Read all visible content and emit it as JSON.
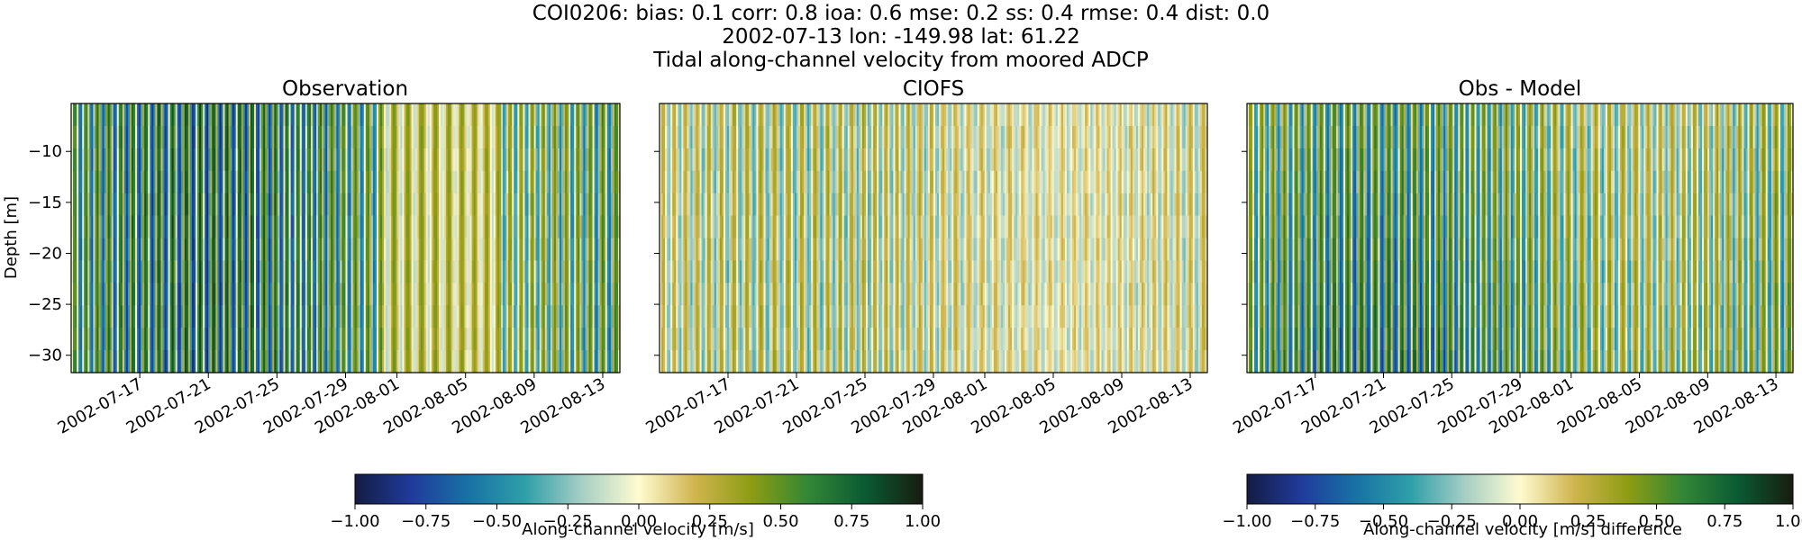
{
  "figure": {
    "title_lines": [
      "COI0206: bias: 0.1  corr: 0.8  ioa: 0.6  mse: 0.2  ss: 0.4  rmse: 0.4  dist: 0.0",
      "2002-07-13 lon: -149.98 lat: 61.22",
      "Tidal along-channel velocity from moored ADCP"
    ]
  },
  "chart_data": [
    {
      "type": "heatmap",
      "title": "Observation",
      "ylabel": "Depth [m]",
      "xlabel": "",
      "x_ticks": [
        "2002-07-17",
        "2002-07-21",
        "2002-07-25",
        "2002-07-29",
        "2002-08-01",
        "2002-08-05",
        "2002-08-09",
        "2002-08-13"
      ],
      "y_ticks": [
        -10,
        -15,
        -20,
        -25,
        -30
      ],
      "x_range": [
        "2002-07-13",
        "2002-08-14"
      ],
      "y_range": [
        -31.7,
        -5.3
      ],
      "colormap": "delta",
      "color_range": [
        -1.0,
        1.0
      ],
      "pattern": "tidal stripes, amplitude ~0.8 m/s"
    },
    {
      "type": "heatmap",
      "title": "CIOFS",
      "ylabel": "",
      "xlabel": "",
      "x_ticks": [
        "2002-07-17",
        "2002-07-21",
        "2002-07-25",
        "2002-07-29",
        "2002-08-01",
        "2002-08-05",
        "2002-08-09",
        "2002-08-13"
      ],
      "y_ticks": [
        -10,
        -15,
        -20,
        -25,
        -30
      ],
      "x_range": [
        "2002-07-13",
        "2002-08-14"
      ],
      "y_range": [
        -31.7,
        -5.3
      ],
      "colormap": "delta",
      "color_range": [
        -1.0,
        1.0
      ],
      "pattern": "tidal stripes, amplitude ~0.35 m/s"
    },
    {
      "type": "heatmap",
      "title": "Obs - Model",
      "ylabel": "",
      "xlabel": "",
      "x_ticks": [
        "2002-07-17",
        "2002-07-21",
        "2002-07-25",
        "2002-07-29",
        "2002-08-01",
        "2002-08-05",
        "2002-08-09",
        "2002-08-13"
      ],
      "y_ticks": [
        -10,
        -15,
        -20,
        -25,
        -30
      ],
      "x_range": [
        "2002-07-13",
        "2002-08-14"
      ],
      "y_range": [
        -31.7,
        -5.3
      ],
      "colormap": "delta",
      "color_range": [
        -1.0,
        1.0
      ],
      "pattern": "tidal stripes, amplitude ~0.6 m/s, larger at depth"
    }
  ],
  "colorbars": [
    {
      "label": "Along-channel velocity [m/s]",
      "ticks": [
        "−1.00",
        "−0.75",
        "−0.50",
        "−0.25",
        "0.00",
        "0.25",
        "0.50",
        "0.75",
        "1.00"
      ]
    },
    {
      "label": "Along-channel velocity [m/s] difference",
      "ticks": [
        "−1.00",
        "−0.75",
        "−0.50",
        "−0.25",
        "0.00",
        "0.25",
        "0.50",
        "0.75",
        "1.00"
      ]
    }
  ],
  "colors": {
    "cmap_stops": [
      "#141c43",
      "#213b9c",
      "#1872a5",
      "#2f9fa9",
      "#a6cfc5",
      "#fffbd1",
      "#cfb44d",
      "#8c9c12",
      "#318636",
      "#0a5a33",
      "#181c10"
    ]
  }
}
